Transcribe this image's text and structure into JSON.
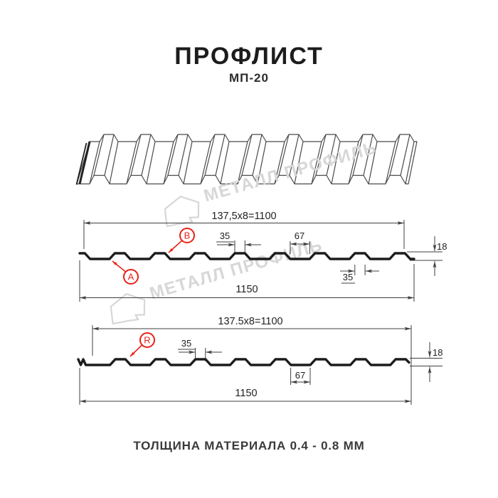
{
  "page": {
    "title": "ПРОФЛИСТ",
    "subtitle": "МП-20",
    "footer_note": "ТОЛЩИНА МАТЕРИАЛА 0.4 - 0.8 ММ"
  },
  "watermark": {
    "brand": "МЕТАЛЛ ПРОФИЛЬ"
  },
  "colors": {
    "red": "#e82219",
    "ink": "#1c1c1c",
    "dim": "#3f3f3f",
    "sketch": "#4a4a4a",
    "watermark": "#d7d7d7"
  },
  "profile_top": {
    "label_a": "A",
    "label_b": "B",
    "dim_module": "137,5x8=1100",
    "dim_crest_top": "35",
    "dim_valley": "67",
    "dim_height": "18",
    "dim_crest_bottom": "35",
    "dim_overall": "1150"
  },
  "profile_bottom": {
    "label_r": "R",
    "dim_module": "137.5x8=1100",
    "dim_crest": "35",
    "dim_valley": "67",
    "dim_height": "18",
    "dim_overall": "1150"
  }
}
